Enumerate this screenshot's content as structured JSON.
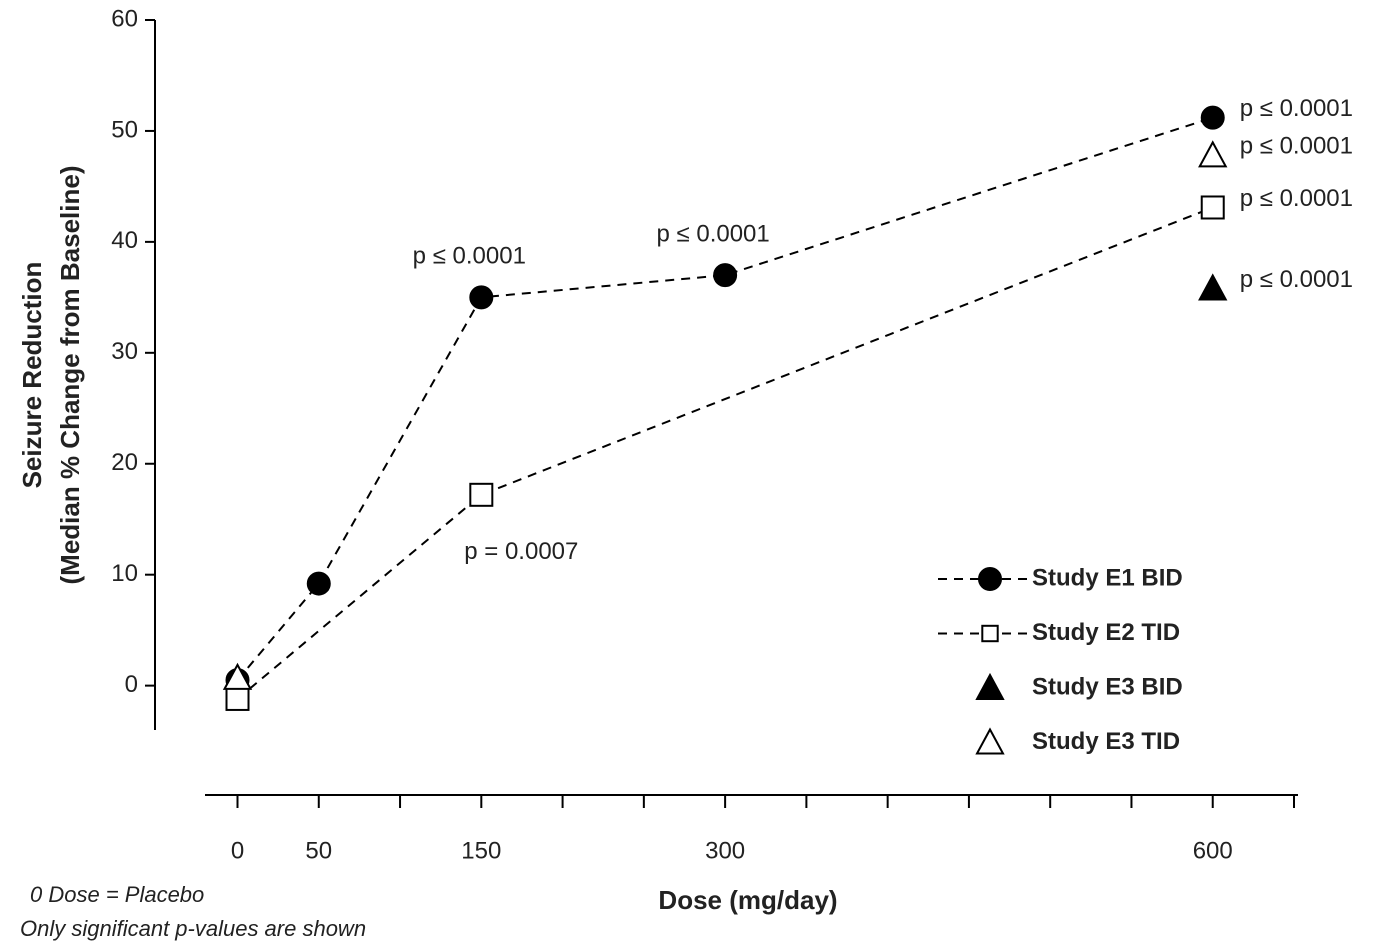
{
  "chart_data": {
    "type": "line",
    "x_label": "Dose (mg/day)",
    "y_label": [
      "Seizure Reduction",
      "(Median % Change from Baseline)"
    ],
    "xlim": [
      -20,
      650
    ],
    "xticks": [
      0,
      50,
      150,
      300,
      600
    ],
    "xminor_ticks": [
      100,
      200,
      250,
      350,
      400,
      450,
      500,
      550,
      650
    ],
    "ylim": [
      -4,
      60
    ],
    "yticks": [
      0,
      10,
      20,
      30,
      40,
      50,
      60
    ],
    "legend": "lower right",
    "series": [
      {
        "name": "Study E1 BID",
        "color": "#000000",
        "marker": "circle",
        "fill": "#000000",
        "line": "dashed",
        "x": [
          0,
          50,
          150,
          300,
          600
        ],
        "values": [
          0.5,
          9.2,
          35,
          37,
          51.2
        ],
        "annotations": [
          null,
          null,
          "p ≤ 0.0001",
          "p ≤ 0.0001",
          "p ≤ 0.0001"
        ]
      },
      {
        "name": "Study E2 TID",
        "color": "#000000",
        "marker": "square",
        "fill": "#ffffff",
        "line": "dashed",
        "x": [
          0,
          150,
          600
        ],
        "values": [
          -1.2,
          17.2,
          43.1
        ],
        "annotations": [
          null,
          "p = 0.0007",
          "p ≤ 0.0001"
        ]
      },
      {
        "name": "Study E3 BID",
        "color": "#000000",
        "marker": "triangle",
        "fill": "#000000",
        "line": "none",
        "x": [
          600
        ],
        "values": [
          35.8
        ],
        "annotations": [
          "p ≤ 0.0001"
        ]
      },
      {
        "name": "Study E3 TID",
        "color": "#000000",
        "marker": "triangle",
        "fill": "#ffffff",
        "line": "none",
        "x": [
          0,
          600
        ],
        "values": [
          0.7,
          47.8
        ],
        "annotations": [
          null,
          "p ≤ 0.0001"
        ]
      }
    ],
    "footnotes": [
      "0 Dose = Placebo",
      "Only significant p-values are shown"
    ]
  }
}
